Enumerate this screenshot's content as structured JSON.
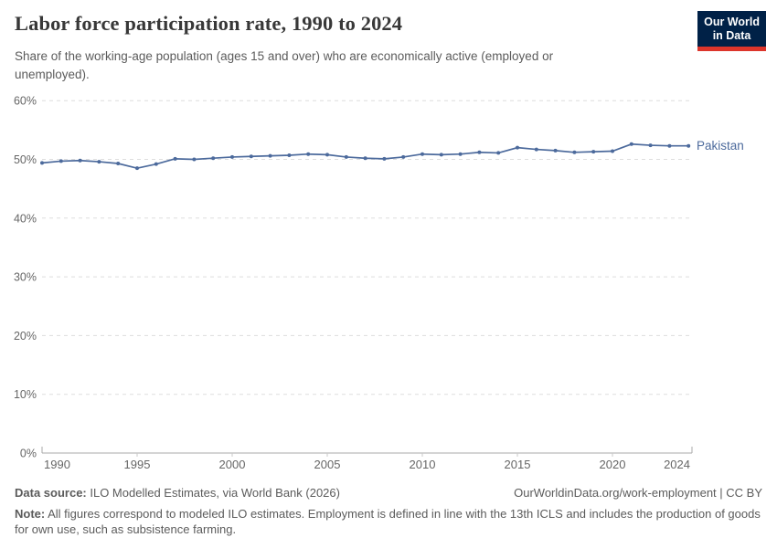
{
  "header": {
    "title": "Labor force participation rate, 1990 to 2024",
    "subtitle": "Share of the working-age population (ages 15 and over) who are economically active (employed or unemployed).",
    "logo": {
      "line1": "Our World",
      "line2": "in Data",
      "bg_color": "#002147",
      "accent_color": "#dc352b"
    }
  },
  "chart_data": {
    "type": "line",
    "title": "Labor force participation rate, 1990 to 2024",
    "xlabel": "",
    "ylabel": "",
    "grid": "horizontal-dashed",
    "legend_position": "end-of-line-label",
    "xlim": [
      1990,
      2024
    ],
    "ylim": [
      0,
      60
    ],
    "x_ticks": [
      1990,
      1995,
      2000,
      2005,
      2010,
      2015,
      2020,
      2024
    ],
    "y_ticks": [
      {
        "value": 0,
        "label": "0%"
      },
      {
        "value": 10,
        "label": "10%"
      },
      {
        "value": 20,
        "label": "20%"
      },
      {
        "value": 30,
        "label": "30%"
      },
      {
        "value": 40,
        "label": "40%"
      },
      {
        "value": 50,
        "label": "50%"
      },
      {
        "value": 60,
        "label": "60%"
      }
    ],
    "x": [
      1990,
      1991,
      1992,
      1993,
      1994,
      1995,
      1996,
      1997,
      1998,
      1999,
      2000,
      2001,
      2002,
      2003,
      2004,
      2005,
      2006,
      2007,
      2008,
      2009,
      2010,
      2011,
      2012,
      2013,
      2014,
      2015,
      2016,
      2017,
      2018,
      2019,
      2020,
      2021,
      2022,
      2023,
      2024
    ],
    "series": [
      {
        "name": "Pakistan",
        "color": "#4c6a9c",
        "values": [
          49.4,
          49.7,
          49.8,
          49.6,
          49.3,
          48.5,
          49.2,
          50.1,
          50.0,
          50.2,
          50.4,
          50.5,
          50.6,
          50.7,
          50.9,
          50.8,
          50.4,
          50.2,
          50.1,
          50.4,
          50.9,
          50.8,
          50.9,
          51.2,
          51.1,
          52.0,
          51.7,
          51.5,
          51.2,
          51.3,
          51.4,
          52.6,
          52.4,
          52.3,
          52.3
        ]
      }
    ],
    "colors": {
      "gridline": "#dddddd",
      "axis": "#a8a8a8",
      "tick": "#c9c9c9",
      "tick_label": "#666666"
    }
  },
  "footer": {
    "datasource_label": "Data source:",
    "datasource_text": " ILO Modelled Estimates, via World Bank (2026)",
    "link_text": "OurWorldinData.org/work-employment | CC BY",
    "note_label": "Note:",
    "note_text": " All figures correspond to modeled ILO estimates. Employment is defined in line with the 13th ICLS and includes the production of goods for own use, such as subsistence farming."
  }
}
